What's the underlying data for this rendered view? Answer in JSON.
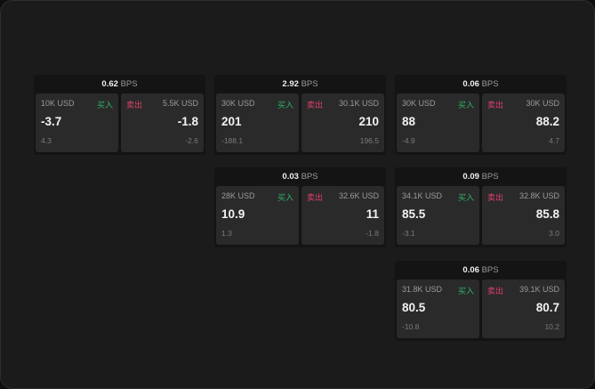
{
  "unit": "BPS",
  "buy_label": "买入",
  "sell_label": "卖出",
  "colors": {
    "buy": "#2fb466",
    "sell": "#e0406a"
  },
  "cards": [
    {
      "spread": "0.62",
      "bid": {
        "size": "10K USD",
        "price": "-3.7",
        "change": "4.3"
      },
      "ask": {
        "size": "5.5K USD",
        "price": "-1.8",
        "change": "-2.6"
      }
    },
    {
      "spread": "2.92",
      "bid": {
        "size": "30K USD",
        "price": "201",
        "change": "-188.1"
      },
      "ask": {
        "size": "30.1K USD",
        "price": "210",
        "change": "196.5"
      }
    },
    {
      "spread": "0.06",
      "bid": {
        "size": "30K USD",
        "price": "88",
        "change": "-4.9"
      },
      "ask": {
        "size": "30K USD",
        "price": "88.2",
        "change": "4.7"
      }
    },
    {
      "spread": "0.03",
      "bid": {
        "size": "28K USD",
        "price": "10.9",
        "change": "1.3"
      },
      "ask": {
        "size": "32.6K USD",
        "price": "11",
        "change": "-1.8"
      }
    },
    {
      "spread": "0.09",
      "bid": {
        "size": "34.1K USD",
        "price": "85.5",
        "change": "-3.1"
      },
      "ask": {
        "size": "32.8K USD",
        "price": "85.8",
        "change": "3.0"
      }
    },
    {
      "spread": "0.06",
      "bid": {
        "size": "31.8K USD",
        "price": "80.5",
        "change": "-10.8"
      },
      "ask": {
        "size": "39.1K USD",
        "price": "80.7",
        "change": "10.2"
      }
    }
  ]
}
